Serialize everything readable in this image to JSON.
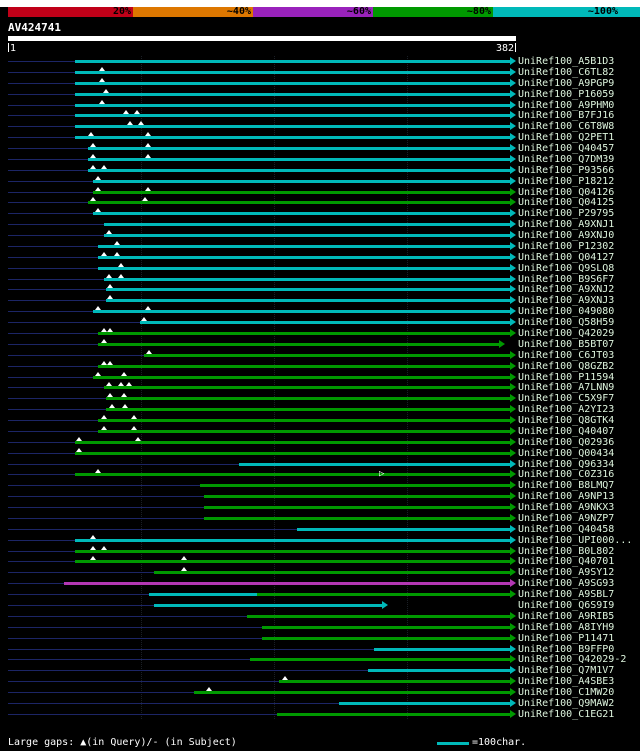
{
  "page": {
    "background": "#000000",
    "top_strip_color": "#ffffff"
  },
  "scalebar": {
    "segments": [
      {
        "label": "20%",
        "color": "#c00018"
      },
      {
        "label": "~40%",
        "color": "#dd7700"
      },
      {
        "label": "~60%",
        "color": "#9922bb"
      },
      {
        "label": "~80%",
        "color": "#009900"
      },
      {
        "label": "~100%",
        "color": "#00b9b9"
      }
    ]
  },
  "query": {
    "name": "AV424741",
    "ruler_start": "1",
    "ruler_end": "382"
  },
  "legend": {
    "gaps": "Large gaps: ▲(in Query)/- (in Subject)",
    "scale": "=100char."
  },
  "band_colors": {
    "100": "#00b9b9",
    "80": "#009900",
    "60": "#b437b4"
  },
  "misc_colors": {
    "navy": "#1c2566",
    "gap_marker": "#ffffff",
    "label": "#ddf4dd"
  },
  "chart_data": {
    "type": "alignment-overview",
    "query": "AV424741",
    "query_length": 382,
    "identity_bands": [
      "20%",
      "~40%",
      "~60%",
      "~80%",
      "~100%"
    ],
    "hits": [
      {
        "name": "UniRef100_A5B1D3",
        "band": "100",
        "from": 50,
        "to": 382,
        "gaps": []
      },
      {
        "name": "UniRef100_C6TL82",
        "band": "100",
        "from": 50,
        "to": 382,
        "gaps": [
          71
        ]
      },
      {
        "name": "UniRef100_A9PGP9",
        "band": "100",
        "from": 50,
        "to": 382,
        "gaps": [
          71
        ]
      },
      {
        "name": "UniRef100_P16059",
        "band": "100",
        "from": 50,
        "to": 382,
        "gaps": [
          74
        ]
      },
      {
        "name": "UniRef100_A9PHM0",
        "band": "100",
        "from": 50,
        "to": 382,
        "gaps": [
          71
        ]
      },
      {
        "name": "UniRef100_B7FJ16",
        "band": "100",
        "from": 50,
        "to": 382,
        "gaps": [
          89,
          97
        ]
      },
      {
        "name": "UniRef100_C6T8W8",
        "band": "100",
        "from": 50,
        "to": 382,
        "gaps": [
          92,
          100
        ]
      },
      {
        "name": "UniRef100_Q2PET1",
        "band": "100",
        "from": 50,
        "to": 382,
        "gaps": [
          62,
          105
        ]
      },
      {
        "name": "UniRef100_Q40457",
        "band": "100",
        "from": 60,
        "to": 382,
        "gaps": [
          64,
          105
        ]
      },
      {
        "name": "UniRef100_Q7DM39",
        "band": "100",
        "from": 60,
        "to": 382,
        "gaps": [
          64,
          105
        ]
      },
      {
        "name": "UniRef100_P93566",
        "band": "100",
        "from": 60,
        "to": 382,
        "gaps": [
          64,
          72
        ]
      },
      {
        "name": "UniRef100_P18212",
        "band": "100",
        "from": 64,
        "to": 382,
        "gaps": [
          68
        ]
      },
      {
        "name": "UniRef100_Q04126",
        "band": "80",
        "from": 64,
        "to": 382,
        "gaps": [
          68,
          105
        ]
      },
      {
        "name": "UniRef100_Q04125",
        "band": "80",
        "from": 60,
        "to": 382,
        "gaps": [
          64,
          103
        ]
      },
      {
        "name": "UniRef100_P29795",
        "band": "100",
        "from": 64,
        "to": 382,
        "gaps": [
          68
        ]
      },
      {
        "name": "UniRef100_A9XNJ1",
        "band": "100",
        "from": 72,
        "to": 382,
        "gaps": []
      },
      {
        "name": "UniRef100_A9XNJ0",
        "band": "100",
        "from": 72,
        "to": 382,
        "gaps": [
          76
        ]
      },
      {
        "name": "UniRef100_P12302",
        "band": "100",
        "from": 68,
        "to": 382,
        "gaps": [
          82
        ]
      },
      {
        "name": "UniRef100_Q04127",
        "band": "100",
        "from": 68,
        "to": 382,
        "gaps": [
          72,
          82
        ]
      },
      {
        "name": "UniRef100_Q9SLQ8",
        "band": "100",
        "from": 68,
        "to": 382,
        "gaps": [
          85
        ]
      },
      {
        "name": "UniRef100_B9S6F7",
        "band": "100",
        "from": 72,
        "to": 382,
        "gaps": [
          76,
          85
        ]
      },
      {
        "name": "UniRef100_A9XNJ2",
        "band": "100",
        "from": 74,
        "to": 382,
        "gaps": [
          77
        ]
      },
      {
        "name": "UniRef100_A9XNJ3",
        "band": "100",
        "from": 74,
        "to": 382,
        "gaps": [
          77
        ]
      },
      {
        "name": "UniRef100_049080",
        "band": "100",
        "from": 64,
        "to": 382,
        "gaps": [
          68,
          105
        ]
      },
      {
        "name": "UniRef100_Q58H59",
        "band": "100",
        "from": 99,
        "to": 382,
        "gaps": [
          102
        ]
      },
      {
        "name": "UniRef100_Q42029",
        "band": "80",
        "from": 68,
        "to": 382,
        "gaps": [
          72,
          77
        ]
      },
      {
        "name": "UniRef100_B5BT07",
        "band": "80",
        "from": 68,
        "to": 374,
        "gaps": [
          72
        ]
      },
      {
        "name": "UniRef100_C6JT03",
        "band": "80",
        "from": 102,
        "to": 382,
        "gaps": [
          106
        ]
      },
      {
        "name": "UniRef100_Q8GZB2",
        "band": "80",
        "from": 68,
        "to": 382,
        "gaps": [
          72,
          77
        ]
      },
      {
        "name": "UniRef100_P11594",
        "band": "80",
        "from": 64,
        "to": 382,
        "gaps": [
          68,
          87
        ]
      },
      {
        "name": "UniRef100_A7LNN9",
        "band": "80",
        "from": 72,
        "to": 382,
        "gaps": [
          76,
          85,
          91
        ]
      },
      {
        "name": "UniRef100_C5X9F7",
        "band": "80",
        "from": 74,
        "to": 382,
        "gaps": [
          77,
          87
        ]
      },
      {
        "name": "UniRef100_A2YI23",
        "band": "80",
        "from": 74,
        "to": 382,
        "gaps": [
          78,
          88
        ]
      },
      {
        "name": "UniRef100_Q8GTK4",
        "band": "80",
        "from": 68,
        "to": 382,
        "gaps": [
          72,
          95
        ]
      },
      {
        "name": "UniRef100_Q40407",
        "band": "80",
        "from": 68,
        "to": 382,
        "gaps": [
          72,
          95
        ]
      },
      {
        "name": "UniRef100_Q02936",
        "band": "80",
        "from": 50,
        "to": 382,
        "gaps": [
          53,
          98
        ]
      },
      {
        "name": "UniRef100_Q00434",
        "band": "80",
        "from": 50,
        "to": 382,
        "gaps": [
          53
        ]
      },
      {
        "name": "UniRef100_Q96334",
        "band": "100",
        "from": 174,
        "to": 382,
        "gaps": []
      },
      {
        "name": "UniRef100_C0Z316",
        "band": "80",
        "from": 50,
        "to": 382,
        "gaps": [
          68
        ],
        "open_arrow": 282
      },
      {
        "name": "UniRef100_B8LMQ7",
        "band": "80",
        "from": 144,
        "to": 382,
        "gaps": []
      },
      {
        "name": "UniRef100_A9NP13",
        "band": "80",
        "from": 147,
        "to": 382,
        "gaps": []
      },
      {
        "name": "UniRef100_A9NKX3",
        "band": "80",
        "from": 147,
        "to": 382,
        "gaps": []
      },
      {
        "name": "UniRef100_A9NZP7",
        "band": "80",
        "from": 147,
        "to": 382,
        "gaps": []
      },
      {
        "name": "UniRef100_Q40458",
        "band": "100",
        "from": 217,
        "to": 382,
        "gaps": []
      },
      {
        "name": "UniRef100_UPI000...",
        "band": "100",
        "from": 50,
        "to": 382,
        "gaps": [
          64
        ]
      },
      {
        "name": "UniRef100_B0L802",
        "band": "80",
        "from": 50,
        "to": 382,
        "gaps": [
          64,
          72
        ]
      },
      {
        "name": "UniRef100_Q40701",
        "band": "80",
        "from": 50,
        "to": 382,
        "gaps": [
          64,
          132
        ]
      },
      {
        "name": "UniRef100_A9SY12",
        "band": "80",
        "from": 110,
        "to": 382,
        "gaps": [
          132
        ]
      },
      {
        "name": "UniRef100_A9SG93",
        "band": "60",
        "from": 42,
        "to": 382,
        "gaps": []
      },
      {
        "name": "UniRef100_A9SBL7",
        "bands": [
          [
            "100",
            106,
            187
          ],
          [
            "80",
            187,
            382
          ]
        ],
        "gaps": []
      },
      {
        "name": "UniRef100_Q6S9I9",
        "band": "100",
        "from": 110,
        "to": 286,
        "gaps": []
      },
      {
        "name": "UniRef100_A9RIB5",
        "band": "80",
        "from": 180,
        "to": 382,
        "gaps": []
      },
      {
        "name": "UniRef100_A8IYH9",
        "band": "80",
        "from": 191,
        "to": 382,
        "gaps": []
      },
      {
        "name": "UniRef100_P11471",
        "band": "80",
        "from": 191,
        "to": 382,
        "gaps": []
      },
      {
        "name": "UniRef100_B9FFP0",
        "band": "100",
        "from": 275,
        "to": 382,
        "gaps": []
      },
      {
        "name": "UniRef100_Q42029-2",
        "band": "80",
        "from": 182,
        "to": 382,
        "gaps": []
      },
      {
        "name": "UniRef100_Q7M1V7",
        "band": "100",
        "from": 271,
        "to": 382,
        "gaps": []
      },
      {
        "name": "UniRef100_A4SBE3",
        "band": "80",
        "from": 204,
        "to": 382,
        "gaps": [
          208
        ]
      },
      {
        "name": "UniRef100_C1MW20",
        "band": "80",
        "from": 140,
        "to": 382,
        "gaps": [
          151
        ]
      },
      {
        "name": "UniRef100_Q9MAW2",
        "band": "100",
        "from": 249,
        "to": 382,
        "gaps": []
      },
      {
        "name": "UniRef100_C1EG21",
        "band": "80",
        "from": 202,
        "to": 382,
        "gaps": []
      }
    ]
  }
}
